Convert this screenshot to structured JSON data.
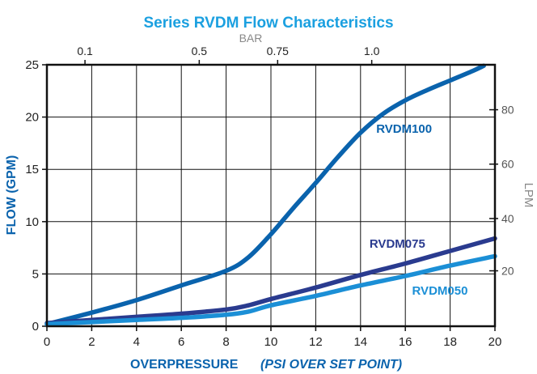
{
  "chart_data": {
    "type": "line",
    "title": "Series RVDM Flow Characteristics",
    "xlabel": "OVERPRESSURE",
    "xlabel_sub": "(PSI OVER SET POINT)",
    "ylabel": "FLOW (GPM)",
    "y2label": "LPM",
    "x2label": "BAR",
    "xlim": [
      0,
      20
    ],
    "ylim": [
      0,
      25
    ],
    "grid": true,
    "x_ticks": [
      0,
      2,
      4,
      6,
      8,
      10,
      12,
      14,
      16,
      18,
      20
    ],
    "y_ticks": [
      0,
      5,
      10,
      15,
      20,
      25
    ],
    "x2_ticks": [
      {
        "label": "0.1",
        "psi": 1.7
      },
      {
        "label": "0.5",
        "psi": 6.8
      },
      {
        "label": "0.75",
        "psi": 10.3
      },
      {
        "label": "1.0",
        "psi": 14.5
      }
    ],
    "y2_ticks": [
      {
        "label": "20",
        "gpm": 5.3
      },
      {
        "label": "40",
        "gpm": 10.3
      },
      {
        "label": "60",
        "gpm": 15.5
      },
      {
        "label": "80",
        "gpm": 20.7
      }
    ],
    "series": [
      {
        "name": "RVDM100",
        "color": "#0a63ad",
        "label_at": [
          14.7,
          18.5
        ],
        "x": [
          0,
          2,
          4,
          6,
          8,
          9,
          10,
          11,
          12,
          13,
          14,
          15,
          16,
          17,
          18,
          19,
          19.5
        ],
        "y": [
          0.2,
          1.3,
          2.5,
          3.9,
          5.3,
          6.6,
          8.8,
          11.3,
          13.7,
          16.2,
          18.5,
          20.3,
          21.6,
          22.6,
          23.5,
          24.4,
          24.9
        ]
      },
      {
        "name": "RVDM075",
        "color": "#2a3b8f",
        "label_at": [
          14.4,
          7.5
        ],
        "x": [
          0,
          2,
          4,
          6,
          8,
          9,
          10,
          12,
          14,
          16,
          18,
          20
        ],
        "y": [
          0.3,
          0.6,
          0.9,
          1.2,
          1.6,
          2.0,
          2.6,
          3.7,
          4.9,
          6.0,
          7.2,
          8.4
        ]
      },
      {
        "name": "RVDM050",
        "color": "#1b8fd6",
        "label_at": [
          16.3,
          3.0
        ],
        "x": [
          0,
          2,
          4,
          6,
          8,
          9,
          10,
          12,
          14,
          16,
          18,
          20
        ],
        "y": [
          0.2,
          0.4,
          0.6,
          0.8,
          1.1,
          1.4,
          2.0,
          2.9,
          3.9,
          4.8,
          5.8,
          6.7
        ]
      }
    ],
    "colors": {
      "title": "#1ba0e0",
      "axis_titles": "#0a63ad",
      "grid": "#111111",
      "secondary_axis": "#888888"
    }
  }
}
